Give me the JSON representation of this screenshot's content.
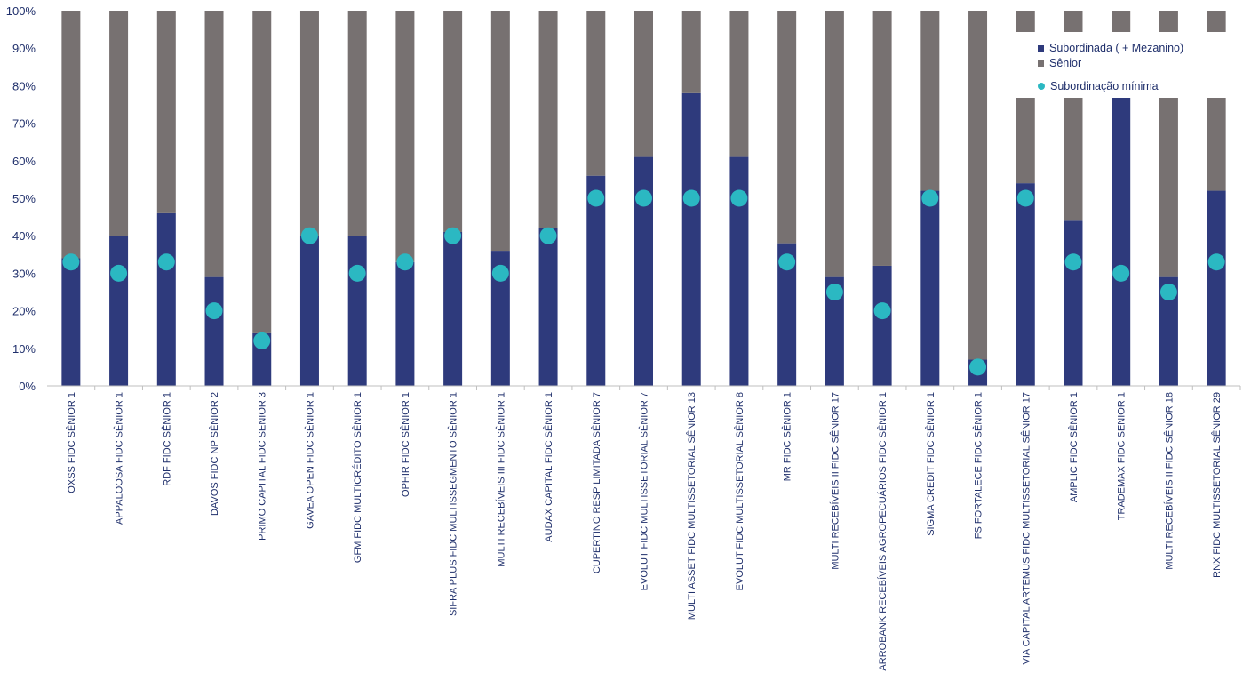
{
  "chart_data": {
    "type": "bar",
    "stacked": true,
    "title": "",
    "xlabel": "",
    "ylabel": "",
    "ylim": [
      0,
      100
    ],
    "yticks": [
      "0%",
      "10%",
      "20%",
      "30%",
      "40%",
      "50%",
      "60%",
      "70%",
      "80%",
      "90%",
      "100%"
    ],
    "categories": [
      "OXSS FIDC SÊNIOR 1",
      "APPALOOSA FIDC SÊNIOR 1",
      "RDF FIDC SÊNIOR 1",
      "DAVOS FIDC NP SÊNIOR 2",
      "PRIMO CAPITAL FIDC SENIOR 3",
      "GAVEA OPEN FIDC SÊNIOR 1",
      "GFM FIDC MULTICRÉDITO SÊNIOR 1",
      "OPHIR FIDC SÊNIOR 1",
      "SIFRA PLUS FIDC MULTISSEGMENTO SÊNIOR 1",
      "MULTI RECEBÍVEIS III FIDC SÊNIOR 1",
      "AUDAX CAPITAL FIDC SÊNIOR 1",
      "CUPERTINO RESP LIMITADA SÊNIOR 7",
      "EVOLUT FIDC MULTISSETORIAL SÊNIOR 7",
      "MULTI ASSET FIDC MULTISSETORIAL SÊNIOR 13",
      "EVOLUT FIDC MULTISSETORIAL SÊNIOR 8",
      "MR FIDC SÊNIOR 1",
      "MULTI RECEBÍVEIS II FIDC SÊNIOR 17",
      "ARROBANK RECEBÍVEIS AGROPECUÁRIOS FIDC SÊNIOR 1",
      "SIGMA CREDIT FIDC SÊNIOR 1",
      "FS FORTALECE FIDC SÊNIOR 1",
      "VIA CAPITAL ARTEMUS FIDC MULTISSETORIAL SÊNIOR 17",
      "AMPLIC FIDC SÊNIOR 1",
      "TRADEMAX FIDC SENIOR 1",
      "MULTI RECEBÍVEIS II FIDC SÊNIOR 18",
      "RNX FIDC MULTISSETORIAL SÊNIOR 29"
    ],
    "series": [
      {
        "name": "Subordinada ( + Mezanino)",
        "kind": "bar",
        "color": "#2e3a7c",
        "values": [
          34,
          40,
          46,
          29,
          14,
          40,
          40,
          33,
          41,
          36,
          42,
          56,
          61,
          78,
          61,
          38,
          29,
          32,
          52,
          7,
          54,
          44,
          88,
          29,
          52
        ]
      },
      {
        "name": "Sênior",
        "kind": "bar",
        "color": "#777171",
        "values": [
          66,
          60,
          54,
          71,
          86,
          60,
          60,
          67,
          59,
          64,
          58,
          44,
          39,
          22,
          39,
          62,
          71,
          68,
          48,
          93,
          46,
          56,
          12,
          71,
          48
        ]
      },
      {
        "name": "Subordinação mínima",
        "kind": "dot",
        "color": "#2bb8c2",
        "values": [
          33,
          30,
          33,
          20,
          12,
          40,
          30,
          33,
          40,
          30,
          40,
          50,
          50,
          50,
          50,
          33,
          25,
          20,
          50,
          5,
          50,
          33,
          30,
          25,
          33
        ]
      }
    ],
    "grid": false,
    "legend_position": "top-right"
  }
}
